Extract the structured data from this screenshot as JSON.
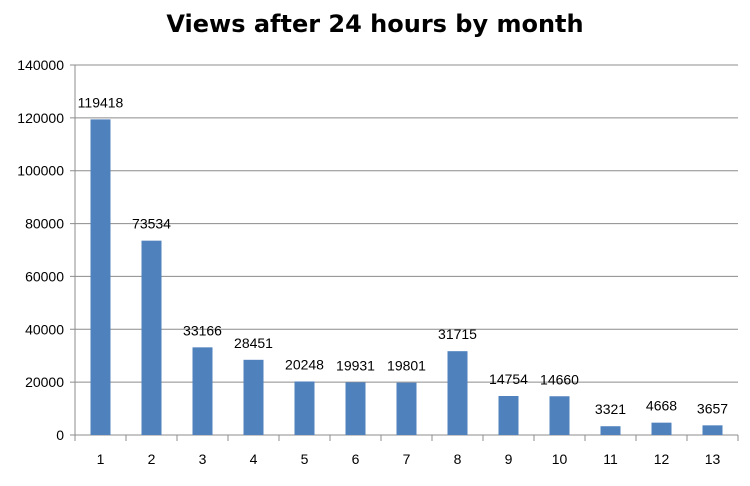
{
  "chart_data": {
    "type": "bar",
    "title": "Views after 24 hours by month",
    "xlabel": "",
    "ylabel": "",
    "categories": [
      "1",
      "2",
      "3",
      "4",
      "5",
      "6",
      "7",
      "8",
      "9",
      "10",
      "11",
      "12",
      "13"
    ],
    "values": [
      119418,
      73534,
      33166,
      28451,
      20248,
      19931,
      19801,
      31715,
      14754,
      14660,
      3321,
      4668,
      3657
    ],
    "data_labels": [
      "119418",
      "73534",
      "33166",
      "28451",
      "20248",
      "19931",
      "19801",
      "31715",
      "14754",
      "14660",
      "3321",
      "4668",
      "3657"
    ],
    "yticks": [
      "0",
      "20000",
      "40000",
      "60000",
      "80000",
      "100000",
      "120000",
      "140000"
    ],
    "ylim": [
      0,
      140000
    ],
    "grid": true,
    "legend": "none",
    "bar_color": "#4f81bd",
    "grid_color": "#8c8c8c"
  }
}
